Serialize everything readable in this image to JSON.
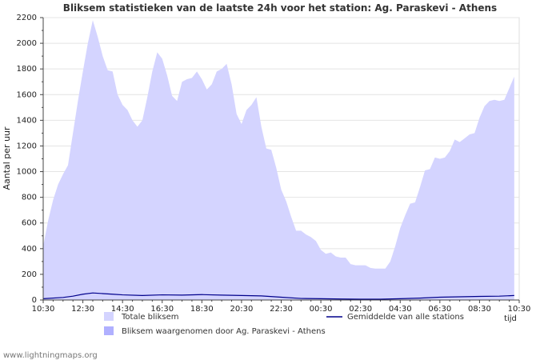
{
  "chart_data": {
    "type": "area",
    "title": "Bliksem statistieken van de laatste 24h voor het station: Ag. Paraskevi - Athens",
    "ylabel": "Aantal per uur",
    "xlabel": "tijd",
    "ylim": [
      0,
      2200
    ],
    "yticks": [
      0,
      200,
      400,
      600,
      800,
      1000,
      1200,
      1400,
      1600,
      1800,
      2000,
      2200
    ],
    "xlim": [
      0,
      24
    ],
    "xticks": [
      {
        "x": 0,
        "label": "10:30"
      },
      {
        "x": 2,
        "label": "12:30"
      },
      {
        "x": 4,
        "label": "14:30"
      },
      {
        "x": 6,
        "label": "16:30"
      },
      {
        "x": 8,
        "label": "18:30"
      },
      {
        "x": 10,
        "label": "20:30"
      },
      {
        "x": 12,
        "label": "22:30"
      },
      {
        "x": 14,
        "label": "00:30"
      },
      {
        "x": 16,
        "label": "02:30"
      },
      {
        "x": 18,
        "label": "04:30"
      },
      {
        "x": 20,
        "label": "06:30"
      },
      {
        "x": 22,
        "label": "08:30"
      },
      {
        "x": 24,
        "label": "10:30"
      }
    ],
    "series": [
      {
        "name": "Totale bliksem",
        "kind": "area",
        "color": "#d4d4ff",
        "points": [
          [
            0,
            420
          ],
          [
            0.25,
            620
          ],
          [
            0.5,
            780
          ],
          [
            0.75,
            900
          ],
          [
            1,
            980
          ],
          [
            1.25,
            1050
          ],
          [
            1.5,
            1300
          ],
          [
            1.75,
            1550
          ],
          [
            2,
            1780
          ],
          [
            2.25,
            2000
          ],
          [
            2.5,
            2180
          ],
          [
            2.75,
            2050
          ],
          [
            3,
            1900
          ],
          [
            3.25,
            1790
          ],
          [
            3.5,
            1780
          ],
          [
            3.75,
            1600
          ],
          [
            4,
            1520
          ],
          [
            4.25,
            1480
          ],
          [
            4.5,
            1400
          ],
          [
            4.75,
            1350
          ],
          [
            5,
            1400
          ],
          [
            5.25,
            1580
          ],
          [
            5.5,
            1780
          ],
          [
            5.75,
            1930
          ],
          [
            6,
            1880
          ],
          [
            6.25,
            1750
          ],
          [
            6.5,
            1590
          ],
          [
            6.75,
            1550
          ],
          [
            7,
            1700
          ],
          [
            7.25,
            1720
          ],
          [
            7.5,
            1730
          ],
          [
            7.75,
            1780
          ],
          [
            8,
            1720
          ],
          [
            8.25,
            1640
          ],
          [
            8.5,
            1680
          ],
          [
            8.75,
            1780
          ],
          [
            9,
            1800
          ],
          [
            9.25,
            1840
          ],
          [
            9.5,
            1680
          ],
          [
            9.75,
            1450
          ],
          [
            10,
            1370
          ],
          [
            10.25,
            1480
          ],
          [
            10.5,
            1520
          ],
          [
            10.75,
            1580
          ],
          [
            11,
            1350
          ],
          [
            11.25,
            1180
          ],
          [
            11.5,
            1170
          ],
          [
            11.75,
            1030
          ],
          [
            12,
            860
          ],
          [
            12.25,
            770
          ],
          [
            12.5,
            650
          ],
          [
            12.75,
            540
          ],
          [
            13,
            540
          ],
          [
            13.25,
            510
          ],
          [
            13.5,
            490
          ],
          [
            13.75,
            460
          ],
          [
            14,
            390
          ],
          [
            14.25,
            360
          ],
          [
            14.5,
            370
          ],
          [
            14.75,
            340
          ],
          [
            15,
            330
          ],
          [
            15.25,
            330
          ],
          [
            15.5,
            280
          ],
          [
            15.75,
            270
          ],
          [
            16,
            270
          ],
          [
            16.25,
            270
          ],
          [
            16.5,
            250
          ],
          [
            16.75,
            245
          ],
          [
            17,
            245
          ],
          [
            17.25,
            245
          ],
          [
            17.5,
            300
          ],
          [
            17.75,
            420
          ],
          [
            18,
            560
          ],
          [
            18.25,
            660
          ],
          [
            18.5,
            750
          ],
          [
            18.75,
            760
          ],
          [
            19,
            880
          ],
          [
            19.25,
            1010
          ],
          [
            19.5,
            1020
          ],
          [
            19.75,
            1110
          ],
          [
            20,
            1100
          ],
          [
            20.25,
            1110
          ],
          [
            20.5,
            1160
          ],
          [
            20.75,
            1250
          ],
          [
            21,
            1230
          ],
          [
            21.25,
            1260
          ],
          [
            21.5,
            1290
          ],
          [
            21.75,
            1300
          ],
          [
            22,
            1420
          ],
          [
            22.25,
            1510
          ],
          [
            22.5,
            1550
          ],
          [
            22.75,
            1560
          ],
          [
            23,
            1550
          ],
          [
            23.25,
            1560
          ],
          [
            23.5,
            1650
          ],
          [
            23.75,
            1740
          ]
        ]
      },
      {
        "name": "Bliksem waargenomen door Ag. Paraskevi - Athens",
        "kind": "area",
        "color": "#b0b0ff",
        "points": [
          [
            0,
            0
          ],
          [
            23.75,
            0
          ]
        ]
      },
      {
        "name": "Gemiddelde van alle stations",
        "kind": "line",
        "color": "#00008b",
        "points": [
          [
            0,
            10
          ],
          [
            1,
            20
          ],
          [
            1.5,
            30
          ],
          [
            2,
            45
          ],
          [
            2.5,
            55
          ],
          [
            3,
            50
          ],
          [
            3.5,
            45
          ],
          [
            4,
            40
          ],
          [
            5,
            35
          ],
          [
            6,
            40
          ],
          [
            7,
            38
          ],
          [
            8,
            42
          ],
          [
            9,
            38
          ],
          [
            10,
            35
          ],
          [
            11,
            32
          ],
          [
            12,
            22
          ],
          [
            13,
            12
          ],
          [
            14,
            10
          ],
          [
            15,
            8
          ],
          [
            16,
            6
          ],
          [
            17,
            6
          ],
          [
            18,
            10
          ],
          [
            19,
            15
          ],
          [
            20,
            22
          ],
          [
            21,
            25
          ],
          [
            22,
            28
          ],
          [
            23,
            30
          ],
          [
            23.75,
            35
          ]
        ]
      }
    ],
    "legend": {
      "position": "bottom",
      "items": [
        {
          "label": "Totale bliksem",
          "swatch": "box",
          "color": "#d4d4ff"
        },
        {
          "label": "Bliksem waargenomen door Ag. Paraskevi - Athens",
          "swatch": "box",
          "color": "#b0b0ff"
        },
        {
          "label": "Gemiddelde van alle stations",
          "swatch": "line",
          "color": "#00008b"
        }
      ]
    },
    "footer": "www.lightningmaps.org"
  }
}
